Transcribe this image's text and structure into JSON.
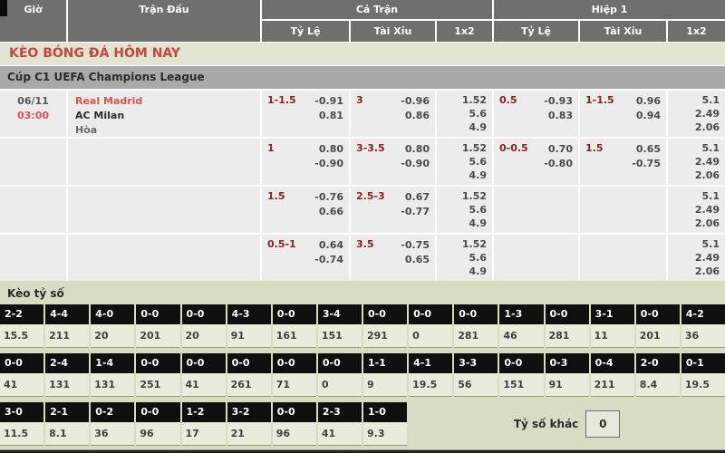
{
  "header": {
    "col_gio": "Giờ",
    "col_tran_dau": "Trận Đấu",
    "group_ca_tran": "Cả Trận",
    "group_hiep_1": "Hiệp 1",
    "sub_ty_le": "Tỷ Lệ",
    "sub_tai_xiu": "Tài Xỉu",
    "sub_1x2": "1x2"
  },
  "banner": {
    "title": "KÈO BÓNG ĐÁ HÔM NAY"
  },
  "league": {
    "name": "Cúp C1 UEFA Champions League"
  },
  "odds_rows": [
    {
      "date": "06/11",
      "time": "03:00",
      "home": "Real Madrid",
      "away": "AC Milan",
      "draw": "Hòa",
      "ft_hdp": {
        "line": "1-1.5",
        "o1": "-0.91",
        "o2": "0.81"
      },
      "ft_ou": {
        "line": "3",
        "o1": "-0.96",
        "o2": "0.86"
      },
      "ft_1x2": [
        "1.52",
        "5.6",
        "4.9"
      ],
      "h1_hdp": {
        "line": "0.5",
        "o1": "-0.93",
        "o2": "0.83"
      },
      "h1_ou": {
        "line": "1-1.5",
        "o1": "0.96",
        "o2": "0.94"
      },
      "h1_1x2": [
        "5.1",
        "2.49",
        "2.06"
      ]
    },
    {
      "ft_hdp": {
        "line": "1",
        "o1": "0.80",
        "o2": "-0.90"
      },
      "ft_ou": {
        "line": "3-3.5",
        "o1": "0.80",
        "o2": "-0.90"
      },
      "ft_1x2": [
        "1.52",
        "5.6",
        "4.9"
      ],
      "h1_hdp": {
        "line": "0-0.5",
        "o1": "0.70",
        "o2": "-0.80"
      },
      "h1_ou": {
        "line": "1.5",
        "o1": "0.65",
        "o2": "-0.75"
      },
      "h1_1x2": [
        "5.1",
        "2.49",
        "2.06"
      ]
    },
    {
      "ft_hdp": {
        "line": "1.5",
        "o1": "-0.76",
        "o2": "0.66"
      },
      "ft_ou": {
        "line": "2.5-3",
        "o1": "0.67",
        "o2": "-0.77"
      },
      "ft_1x2": [
        "1.52",
        "5.6",
        "4.9"
      ],
      "h1_hdp": {
        "line": "",
        "o1": "",
        "o2": ""
      },
      "h1_ou": {
        "line": "",
        "o1": "",
        "o2": ""
      },
      "h1_1x2": [
        "5.1",
        "2.49",
        "2.06"
      ]
    },
    {
      "ft_hdp": {
        "line": "0.5-1",
        "o1": "0.64",
        "o2": "-0.74"
      },
      "ft_ou": {
        "line": "3.5",
        "o1": "-0.75",
        "o2": "0.65"
      },
      "ft_1x2": [
        "1.52",
        "5.6",
        "4.9"
      ],
      "h1_hdp": {
        "line": "",
        "o1": "",
        "o2": ""
      },
      "h1_ou": {
        "line": "",
        "o1": "",
        "o2": ""
      },
      "h1_1x2": [
        "5.1",
        "2.49",
        "2.06"
      ]
    }
  ],
  "score_section": {
    "title": "Kèo tỷ số",
    "row1": [
      {
        "score": "2-2",
        "odd": "15.5"
      },
      {
        "score": "4-4",
        "odd": "211"
      },
      {
        "score": "4-0",
        "odd": "20"
      },
      {
        "score": "0-0",
        "odd": "201"
      },
      {
        "score": "0-0",
        "odd": "20"
      },
      {
        "score": "4-3",
        "odd": "91"
      },
      {
        "score": "0-0",
        "odd": "161"
      },
      {
        "score": "3-4",
        "odd": "151"
      },
      {
        "score": "0-0",
        "odd": "291"
      },
      {
        "score": "0-0",
        "odd": "0"
      },
      {
        "score": "0-0",
        "odd": "281"
      },
      {
        "score": "1-3",
        "odd": "46"
      },
      {
        "score": "0-0",
        "odd": "281"
      },
      {
        "score": "3-1",
        "odd": "11"
      },
      {
        "score": "0-0",
        "odd": "201"
      },
      {
        "score": "4-2",
        "odd": "36"
      }
    ],
    "row2": [
      {
        "score": "0-0",
        "odd": "41"
      },
      {
        "score": "2-4",
        "odd": "131"
      },
      {
        "score": "1-4",
        "odd": "131"
      },
      {
        "score": "0-0",
        "odd": "251"
      },
      {
        "score": "0-0",
        "odd": "41"
      },
      {
        "score": "0-0",
        "odd": "261"
      },
      {
        "score": "0-0",
        "odd": "71"
      },
      {
        "score": "0-0",
        "odd": "0"
      },
      {
        "score": "1-1",
        "odd": "9"
      },
      {
        "score": "4-1",
        "odd": "19.5"
      },
      {
        "score": "3-3",
        "odd": "56"
      },
      {
        "score": "0-0",
        "odd": "151"
      },
      {
        "score": "0-3",
        "odd": "91"
      },
      {
        "score": "0-4",
        "odd": "211"
      },
      {
        "score": "2-0",
        "odd": "8.4"
      },
      {
        "score": "0-1",
        "odd": "19.5"
      }
    ],
    "row3": [
      {
        "score": "3-0",
        "odd": "11.5"
      },
      {
        "score": "2-1",
        "odd": "8.1"
      },
      {
        "score": "0-2",
        "odd": "36"
      },
      {
        "score": "0-0",
        "odd": "96"
      },
      {
        "score": "1-2",
        "odd": "17"
      },
      {
        "score": "3-2",
        "odd": "21"
      },
      {
        "score": "0-0",
        "odd": "96"
      },
      {
        "score": "2-3",
        "odd": "41"
      },
      {
        "score": "1-0",
        "odd": "9.3"
      }
    ],
    "other_label": "Tỷ số khác",
    "other_value": "0"
  },
  "colors": {
    "header_bg": "#6f6f6f",
    "banner_text": "#c8463e",
    "accent_red": "#e0544b",
    "handicap_maroon": "#8b2222",
    "score_cell_bg": "#0f0f0f",
    "section_bg": "#d8dcc2"
  }
}
